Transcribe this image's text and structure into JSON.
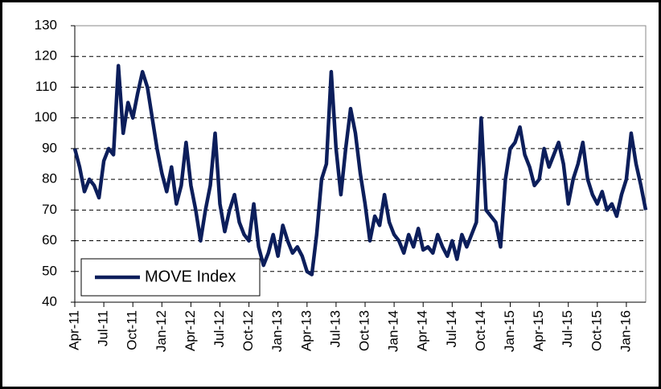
{
  "chart_data": {
    "type": "line",
    "categories": [
      "Apr-11",
      null,
      null,
      null,
      null,
      null,
      "Jul-11",
      null,
      null,
      null,
      null,
      null,
      "Oct-11",
      null,
      null,
      null,
      null,
      null,
      "Jan-12",
      null,
      null,
      null,
      null,
      null,
      "Apr-12",
      null,
      null,
      null,
      null,
      null,
      "Jul-12",
      null,
      null,
      null,
      null,
      null,
      "Oct-12",
      null,
      null,
      null,
      null,
      null,
      "Jan-13",
      null,
      null,
      null,
      null,
      null,
      "Apr-13",
      null,
      null,
      null,
      null,
      null,
      "Jul-13",
      null,
      null,
      null,
      null,
      null,
      "Oct-13",
      null,
      null,
      null,
      null,
      null,
      "Jan-14",
      null,
      null,
      null,
      null,
      null,
      "Apr-14",
      null,
      null,
      null,
      null,
      null,
      "Jul-14",
      null,
      null,
      null,
      null,
      null,
      "Oct-14",
      null,
      null,
      null,
      null,
      null,
      "Jan-15",
      null,
      null,
      null,
      null,
      null,
      "Apr-15",
      null,
      null,
      null,
      null,
      null,
      "Jul-15",
      null,
      null,
      null,
      null,
      null,
      "Oct-15",
      null,
      null,
      null,
      null,
      null,
      "Jan-16",
      null,
      null,
      null,
      null
    ],
    "series": [
      {
        "name": "MOVE Index",
        "color": "#0c1e5b",
        "values": [
          90,
          84,
          76,
          80,
          78,
          74,
          86,
          90,
          88,
          117,
          95,
          105,
          100,
          108,
          115,
          110,
          100,
          90,
          82,
          76,
          84,
          72,
          78,
          92,
          78,
          70,
          60,
          70,
          78,
          95,
          72,
          63,
          70,
          75,
          66,
          62,
          60,
          72,
          58,
          52,
          56,
          62,
          55,
          65,
          60,
          56,
          58,
          55,
          50,
          49,
          62,
          80,
          85,
          115,
          90,
          75,
          90,
          103,
          95,
          82,
          72,
          60,
          68,
          65,
          75,
          66,
          62,
          60,
          56,
          62,
          58,
          64,
          57,
          58,
          56,
          62,
          58,
          55,
          60,
          54,
          62,
          58,
          62,
          66,
          100,
          70,
          68,
          66,
          58,
          80,
          90,
          92,
          97,
          88,
          84,
          78,
          80,
          90,
          84,
          88,
          92,
          85,
          72,
          80,
          85,
          92,
          80,
          75,
          72,
          76,
          70,
          72,
          68,
          75,
          80,
          95,
          85,
          78,
          70
        ]
      }
    ],
    "ylim": [
      40,
      130
    ],
    "yticks": [
      40,
      50,
      60,
      70,
      80,
      90,
      100,
      110,
      120,
      130
    ],
    "grid": true,
    "legend": "lower left"
  }
}
